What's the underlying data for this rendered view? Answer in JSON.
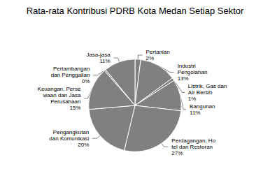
{
  "chart_data": {
    "type": "pie",
    "title": "Rata-rata Kontribusi PDRB Kota Medan Setiap Sektor",
    "categories": [
      "Pertanian",
      "Industri\nPengolahan",
      "Listrik, Gas dan\nAir Bersih",
      "Bangunan",
      "Perdagangan, Ho\ntel dan Restoran",
      "Pengangkutan\ndan Komunikasi",
      "Keuangan, Perse\nwaan dan Jasa\nPerusahaan",
      "Pertambangan\ndan Penggalian",
      "Jasa-jasa"
    ],
    "values": [
      2,
      13,
      1,
      11,
      27,
      20,
      15,
      0.5,
      11
    ],
    "value_labels": [
      "2%",
      "13%",
      "1%",
      "11%",
      "27%",
      "20%",
      "15%",
      "0%",
      "11%"
    ],
    "color": "#808080",
    "data_labels": true
  }
}
